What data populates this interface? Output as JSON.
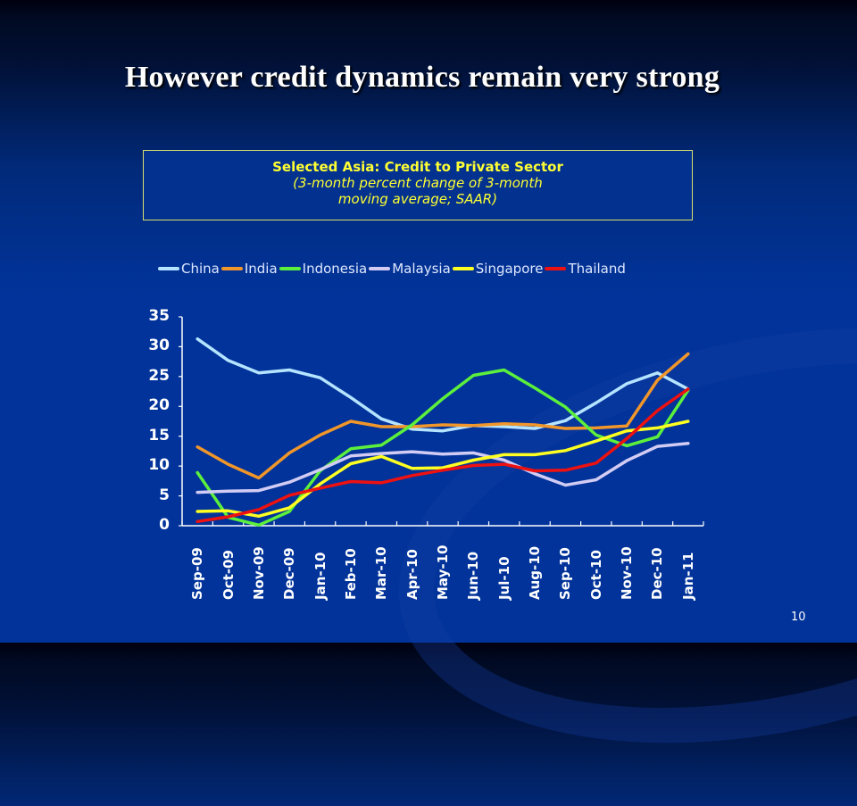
{
  "slide": {
    "title": "However credit dynamics remain very strong",
    "page_number": "10"
  },
  "chart_box": {
    "title": "Selected Asia: Credit to Private Sector",
    "subtitle_line1": "(3-month percent change of 3-month",
    "subtitle_line2": "moving average; SAAR)"
  },
  "legend": [
    {
      "label": "China",
      "color": "#b4e4ff"
    },
    {
      "label": "India",
      "color": "#f0962a"
    },
    {
      "label": "Indonesia",
      "color": "#5cf03c"
    },
    {
      "label": "Malaysia",
      "color": "#d2ccf4"
    },
    {
      "label": "Singapore",
      "color": "#ffff22"
    },
    {
      "label": "Thailand",
      "color": "#ee1111"
    }
  ],
  "chart_data": {
    "type": "line",
    "title": "Selected Asia: Credit to Private Sector",
    "subtitle": "(3-month percent change of 3-month moving average; SAAR)",
    "xlabel": "",
    "ylabel": "",
    "ylim": [
      0,
      35
    ],
    "yticks": [
      0,
      5,
      10,
      15,
      20,
      25,
      30,
      35
    ],
    "grid": false,
    "legend_position": "top",
    "categories": [
      "Sep-09",
      "Oct-09",
      "Nov-09",
      "Dec-09",
      "Jan-10",
      "Feb-10",
      "Mar-10",
      "Apr-10",
      "May-10",
      "Jun-10",
      "Jul-10",
      "Aug-10",
      "Sep-10",
      "Oct-10",
      "Nov-10",
      "Dec-10",
      "Jan-11"
    ],
    "series": [
      {
        "name": "China",
        "color": "#b4e4ff",
        "values": [
          31.3,
          27.7,
          25.6,
          26.1,
          24.8,
          21.5,
          17.9,
          16.2,
          15.9,
          16.8,
          16.6,
          16.3,
          17.6,
          20.6,
          23.8,
          25.6,
          22.9
        ]
      },
      {
        "name": "India",
        "color": "#f0962a",
        "values": [
          13.2,
          10.3,
          8.0,
          12.2,
          15.2,
          17.5,
          16.6,
          16.6,
          16.9,
          16.8,
          17.1,
          16.9,
          16.3,
          16.4,
          16.7,
          24.4,
          28.8
        ]
      },
      {
        "name": "Indonesia",
        "color": "#5cf03c",
        "values": [
          8.9,
          1.4,
          0.1,
          2.4,
          9.2,
          12.9,
          13.5,
          16.9,
          21.3,
          25.2,
          26.1,
          23.1,
          19.9,
          15.2,
          13.4,
          14.9,
          22.7
        ]
      },
      {
        "name": "Malaysia",
        "color": "#d2ccf4",
        "values": [
          5.6,
          5.8,
          5.9,
          7.3,
          9.4,
          11.7,
          12.1,
          12.4,
          12.0,
          12.2,
          11.0,
          8.7,
          6.8,
          7.7,
          10.9,
          13.3,
          13.8
        ]
      },
      {
        "name": "Singapore",
        "color": "#ffff22",
        "values": [
          2.4,
          2.5,
          1.6,
          3.0,
          7.0,
          10.4,
          11.6,
          9.6,
          9.7,
          11.0,
          11.9,
          11.9,
          12.6,
          14.2,
          15.9,
          16.4,
          17.5
        ]
      },
      {
        "name": "Thailand",
        "color": "#ee1111",
        "values": [
          0.7,
          1.5,
          2.7,
          5.1,
          6.3,
          7.4,
          7.2,
          8.4,
          9.3,
          10.1,
          10.3,
          9.2,
          9.3,
          10.5,
          14.6,
          19.3,
          22.9
        ]
      }
    ]
  }
}
